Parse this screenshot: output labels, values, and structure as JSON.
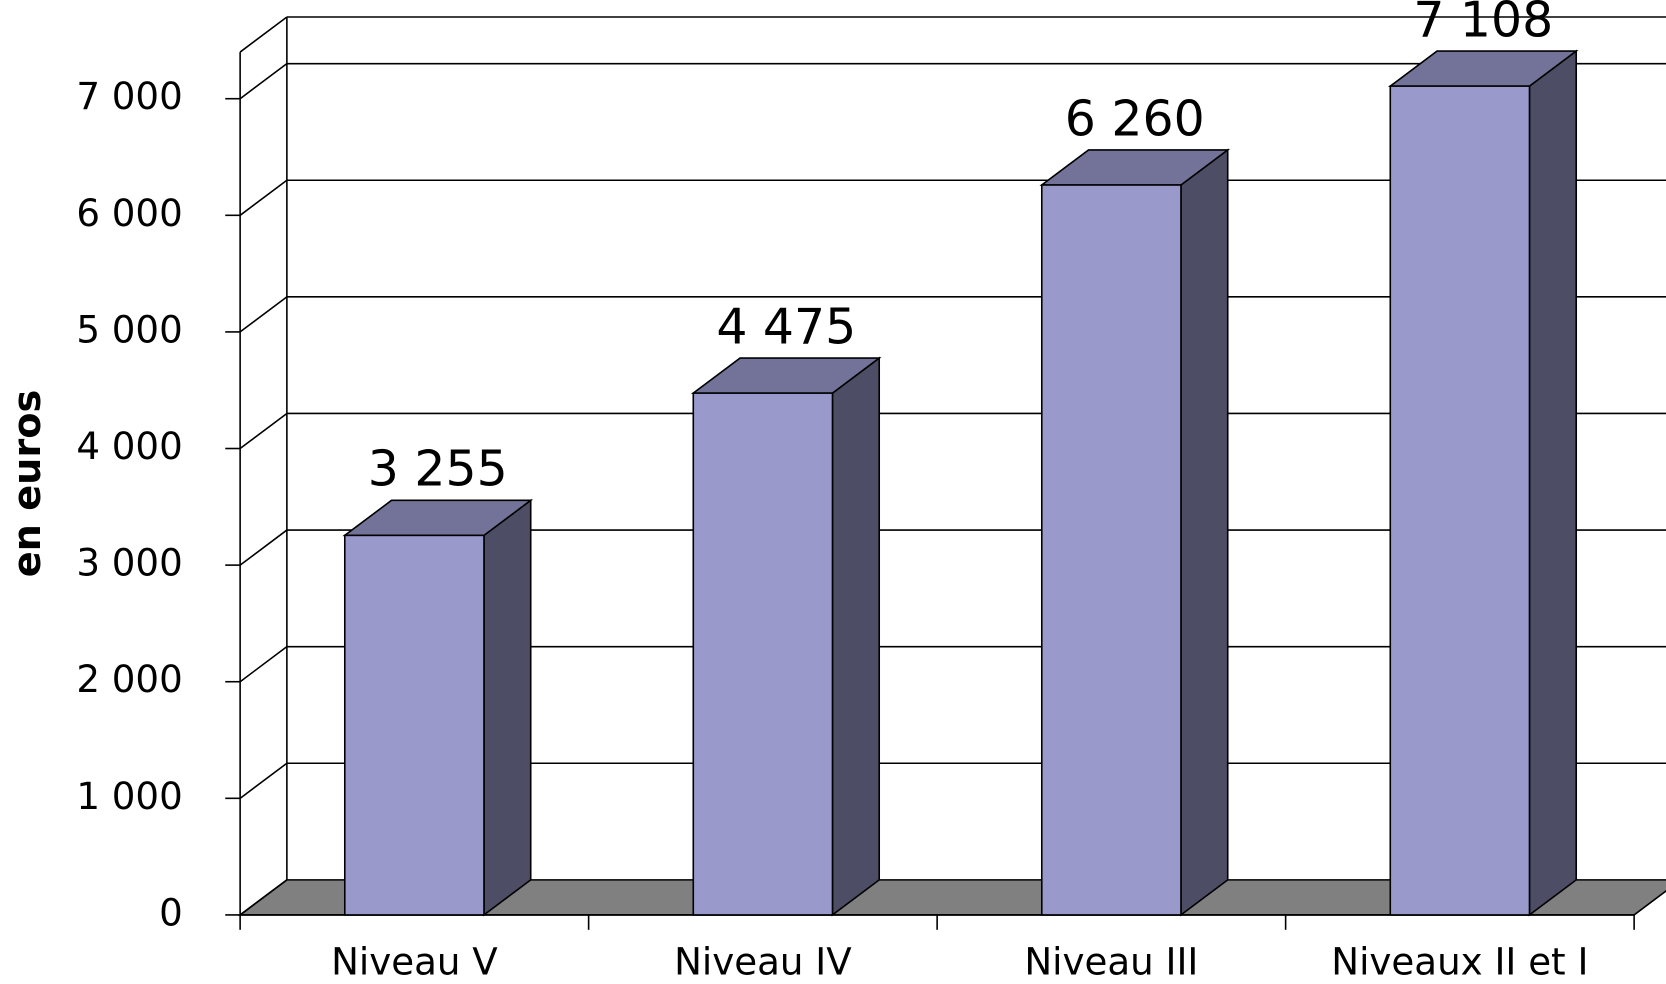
{
  "chart_data": {
    "type": "bar3d",
    "y_label": "en euros",
    "categories": [
      "Niveau V",
      "Niveau IV",
      "Niveau III",
      "Niveaux II et I"
    ],
    "values": [
      3255,
      4475,
      6260,
      7108
    ],
    "value_labels": [
      "3 255",
      "4 475",
      "6 260",
      "7 108"
    ],
    "color": "#9999cc",
    "ylim": [
      0,
      7400
    ],
    "yticks": [
      0,
      {
        "value": 1000,
        "label": "1 000"
      },
      {
        "value": 2000,
        "label": "2 000"
      },
      {
        "value": 3000,
        "label": "3 000"
      },
      {
        "value": 4000,
        "label": "4 000"
      },
      {
        "value": 5000,
        "label": "5 000"
      },
      {
        "value": 6000,
        "label": "6 000"
      },
      {
        "value": 7000,
        "label": "7 000"
      }
    ],
    "grid": true
  }
}
